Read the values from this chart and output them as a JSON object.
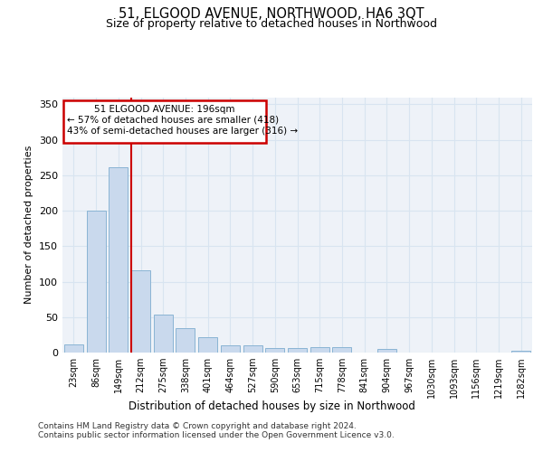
{
  "title": "51, ELGOOD AVENUE, NORTHWOOD, HA6 3QT",
  "subtitle": "Size of property relative to detached houses in Northwood",
  "xlabel": "Distribution of detached houses by size in Northwood",
  "ylabel": "Number of detached properties",
  "categories": [
    "23sqm",
    "86sqm",
    "149sqm",
    "212sqm",
    "275sqm",
    "338sqm",
    "401sqm",
    "464sqm",
    "527sqm",
    "590sqm",
    "653sqm",
    "715sqm",
    "778sqm",
    "841sqm",
    "904sqm",
    "967sqm",
    "1030sqm",
    "1093sqm",
    "1156sqm",
    "1219sqm",
    "1282sqm"
  ],
  "values": [
    11,
    200,
    261,
    116,
    53,
    35,
    22,
    10,
    10,
    7,
    6,
    8,
    8,
    0,
    5,
    0,
    0,
    0,
    0,
    0,
    3
  ],
  "bar_color": "#c9d9ed",
  "bar_edge_color": "#8ab4d4",
  "grid_color": "#d8e4f0",
  "bg_color": "#eef2f8",
  "vline_color": "#cc0000",
  "vline_position": 2.57,
  "annotation_box_color": "#cc0000",
  "ylim": [
    0,
    360
  ],
  "yticks": [
    0,
    50,
    100,
    150,
    200,
    250,
    300,
    350
  ],
  "footer_line1": "Contains HM Land Registry data © Crown copyright and database right 2024.",
  "footer_line2": "Contains public sector information licensed under the Open Government Licence v3.0."
}
